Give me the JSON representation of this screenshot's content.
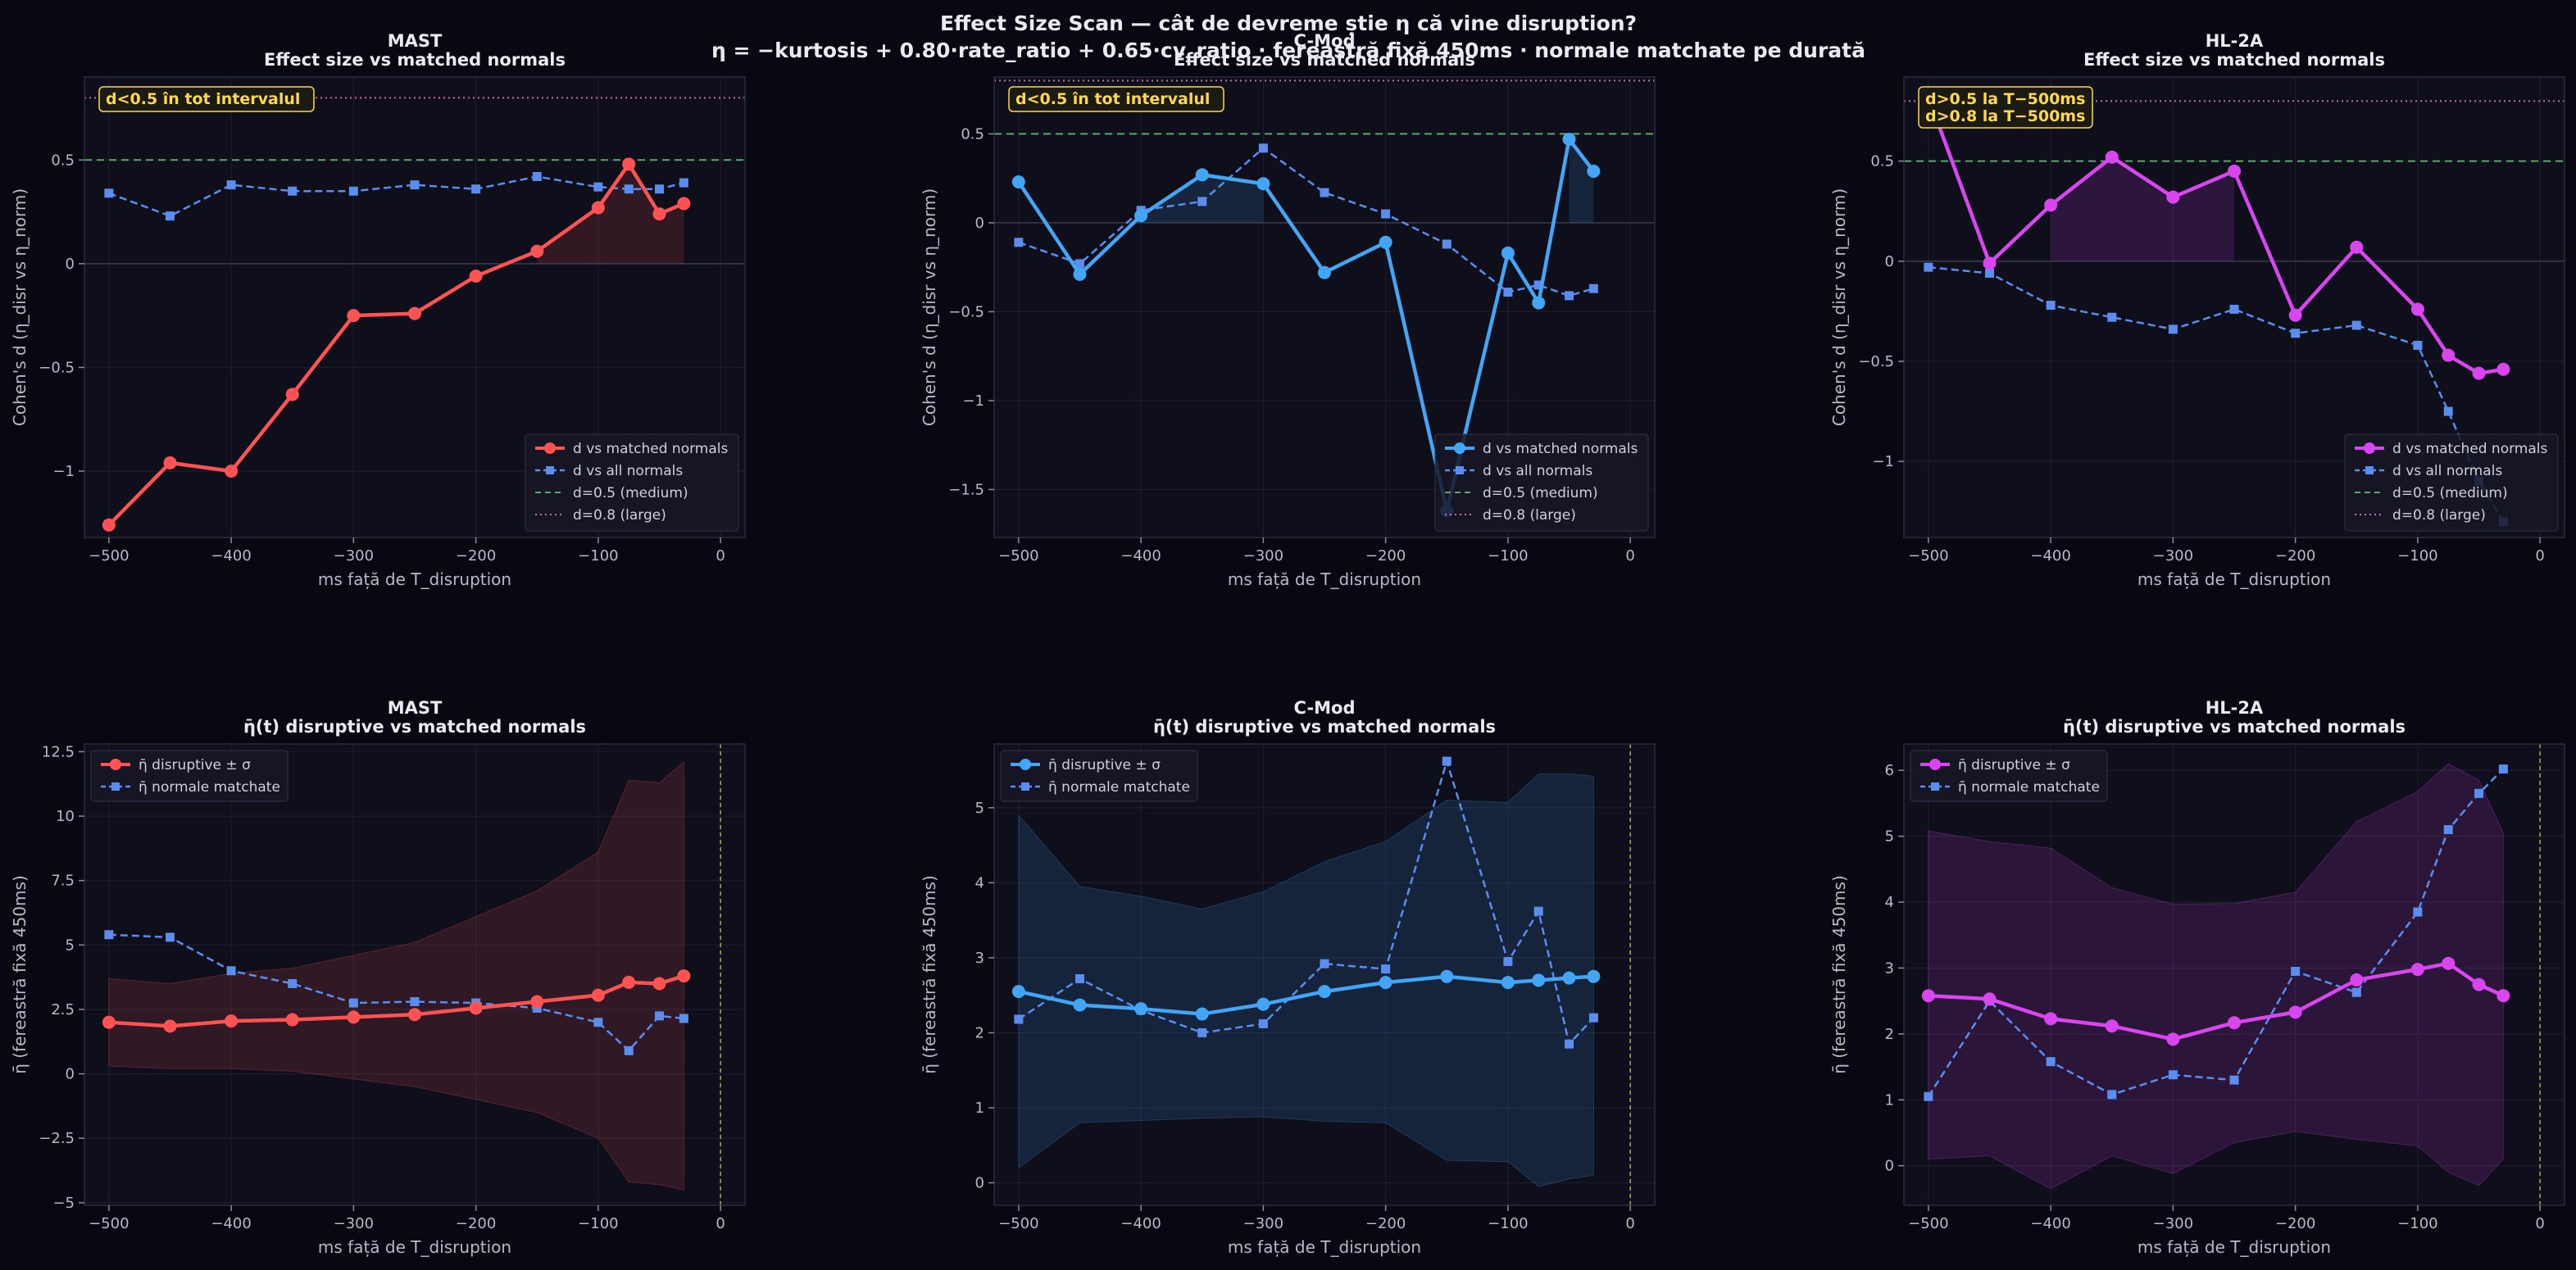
{
  "suptitle_line1": "Effect Size Scan — cât de devreme știe η că vine disruption?",
  "suptitle_line2": "η = −kurtosis + 0.80·rate_ratio + 0.65·cv_ratio · fereastră fixă 450ms · normale matchate pe durată",
  "colors": {
    "MAST": "#ff5252",
    "C-Mod": "#42a5f5",
    "HL-2A": "#d946ef",
    "secondary": "#5b8def",
    "ref_medium": "#5fa86a",
    "ref_large": "#c46fa8",
    "tdisr": "#b8a456"
  },
  "chart_data": [
    {
      "type": "line",
      "device": "MAST",
      "subtitle": "Effect size vs matched normals",
      "xlabel": "ms față de T_disruption",
      "ylabel": "Cohen's d (η_disr vs η_norm)",
      "xlim": [
        -520,
        20
      ],
      "ylim": [
        -1.32,
        0.9
      ],
      "xticks": [
        -500,
        -400,
        -300,
        -200,
        -100,
        0
      ],
      "yticks": [
        -1.0,
        -0.5,
        0.0,
        0.5
      ],
      "x": [
        -500,
        -450,
        -400,
        -350,
        -300,
        -250,
        -200,
        -150,
        -100,
        -75,
        -50,
        -30
      ],
      "series": [
        {
          "name": "d vs matched normals",
          "values": [
            -1.26,
            -0.96,
            -1.0,
            -0.63,
            -0.25,
            -0.24,
            -0.06,
            0.06,
            0.27,
            0.48,
            0.24,
            0.29
          ]
        },
        {
          "name": "d vs all normals",
          "values": [
            0.34,
            0.23,
            0.38,
            0.35,
            0.35,
            0.38,
            0.36,
            0.42,
            0.37,
            0.36,
            0.36,
            0.39
          ]
        }
      ],
      "shade": [
        -150,
        -30
      ],
      "ref_lines": [
        {
          "name": "d=0.5 (medium)",
          "value": 0.5
        },
        {
          "name": "d=0.8 (large)",
          "value": 0.8
        }
      ],
      "annotations": [
        "d<0.5 în tot intervalul"
      ],
      "legend": "lower-right"
    },
    {
      "type": "line",
      "device": "C-Mod",
      "subtitle": "Effect size vs matched normals",
      "xlabel": "ms față de T_disruption",
      "ylabel": "Cohen's d (η_disr vs η_norm)",
      "xlim": [
        -520,
        20
      ],
      "ylim": [
        -1.77,
        0.82
      ],
      "xticks": [
        -500,
        -400,
        -300,
        -200,
        -100,
        0
      ],
      "yticks": [
        -1.5,
        -1.0,
        -0.5,
        0.0,
        0.5
      ],
      "x": [
        -500,
        -450,
        -400,
        -350,
        -300,
        -250,
        -200,
        -150,
        -100,
        -75,
        -50,
        -30
      ],
      "series": [
        {
          "name": "d vs matched normals",
          "values": [
            0.23,
            -0.29,
            0.04,
            0.27,
            0.22,
            -0.28,
            -0.11,
            -1.62,
            -0.17,
            -0.45,
            0.47,
            0.29
          ]
        },
        {
          "name": "d vs all normals",
          "values": [
            -0.11,
            -0.23,
            0.07,
            0.12,
            0.42,
            0.17,
            0.05,
            -0.12,
            -0.39,
            -0.35,
            -0.41,
            -0.37
          ]
        }
      ],
      "shade_ranges": [
        [
          -400,
          -300
        ],
        [
          -50,
          -30
        ]
      ],
      "ref_lines": [
        {
          "name": "d=0.5 (medium)",
          "value": 0.5
        },
        {
          "name": "d=0.8 (large)",
          "value": 0.8
        }
      ],
      "annotations": [
        "d<0.5 în tot intervalul"
      ],
      "legend": "lower-right"
    },
    {
      "type": "line",
      "device": "HL-2A",
      "subtitle": "Effect size vs matched normals",
      "xlabel": "ms față de T_disruption",
      "ylabel": "Cohen's d (η_disr vs η_norm)",
      "xlim": [
        -520,
        20
      ],
      "ylim": [
        -1.38,
        0.92
      ],
      "xticks": [
        -500,
        -400,
        -300,
        -200,
        -100,
        0
      ],
      "yticks": [
        -1.0,
        -0.5,
        0.0,
        0.5
      ],
      "x": [
        -500,
        -450,
        -400,
        -350,
        -300,
        -250,
        -200,
        -150,
        -100,
        -75,
        -50,
        -30
      ],
      "series": [
        {
          "name": "d vs matched normals",
          "values": [
            0.82,
            -0.01,
            0.28,
            0.52,
            0.32,
            0.45,
            -0.27,
            0.07,
            -0.24,
            -0.47,
            -0.56,
            -0.54
          ]
        },
        {
          "name": "d vs all normals",
          "values": [
            -0.03,
            -0.06,
            -0.22,
            -0.28,
            -0.34,
            -0.24,
            -0.36,
            -0.32,
            -0.42,
            -0.75,
            -1.1,
            -1.3
          ]
        }
      ],
      "shade_ranges": [
        [
          -400,
          -250
        ]
      ],
      "ref_lines": [
        {
          "name": "d=0.5 (medium)",
          "value": 0.5
        },
        {
          "name": "d=0.8 (large)",
          "value": 0.8
        }
      ],
      "annotations": [
        "d>0.5 la T−500ms",
        "d>0.8 la T−500ms"
      ],
      "legend": "lower-right"
    },
    {
      "type": "line",
      "device": "MAST",
      "subtitle": "η̄(t) disruptive vs matched normals",
      "xlabel": "ms față de T_disruption",
      "ylabel": "η̄ (fereastră fixă 450ms)",
      "xlim": [
        -520,
        20
      ],
      "ylim": [
        -5.1,
        12.8
      ],
      "xticks": [
        -500,
        -400,
        -300,
        -200,
        -100,
        0
      ],
      "yticks": [
        -5.0,
        -2.5,
        0.0,
        2.5,
        5.0,
        7.5,
        10.0,
        12.5
      ],
      "x": [
        -500,
        -450,
        -400,
        -350,
        -300,
        -250,
        -200,
        -150,
        -100,
        -75,
        -50,
        -30
      ],
      "series": [
        {
          "name": "η̄ disruptive ± σ",
          "values": [
            2.0,
            1.85,
            2.05,
            2.1,
            2.2,
            2.3,
            2.55,
            2.8,
            3.05,
            3.55,
            3.5,
            3.8
          ],
          "band_low": [
            0.3,
            0.2,
            0.2,
            0.1,
            -0.2,
            -0.5,
            -1.0,
            -1.5,
            -2.5,
            -4.2,
            -4.3,
            -4.5
          ],
          "band_high": [
            3.7,
            3.5,
            3.9,
            4.1,
            4.6,
            5.1,
            6.1,
            7.1,
            8.6,
            11.4,
            11.3,
            12.1
          ]
        },
        {
          "name": "η̄ normale matchate",
          "values": [
            5.4,
            5.3,
            4.0,
            3.5,
            2.75,
            2.8,
            2.75,
            2.55,
            2.0,
            0.9,
            2.25,
            2.15
          ]
        }
      ],
      "legend": "upper-left"
    },
    {
      "type": "line",
      "device": "C-Mod",
      "subtitle": "η̄(t) disruptive vs matched normals",
      "xlabel": "ms față de T_disruption",
      "ylabel": "η̄ (fereastră fixă 450ms)",
      "xlim": [
        -520,
        20
      ],
      "ylim": [
        -0.3,
        5.85
      ],
      "xticks": [
        -500,
        -400,
        -300,
        -200,
        -100,
        0
      ],
      "yticks": [
        0,
        1,
        2,
        3,
        4,
        5
      ],
      "x": [
        -500,
        -450,
        -400,
        -350,
        -300,
        -250,
        -200,
        -150,
        -100,
        -75,
        -50,
        -30
      ],
      "series": [
        {
          "name": "η̄ disruptive ± σ",
          "values": [
            2.55,
            2.37,
            2.32,
            2.25,
            2.38,
            2.55,
            2.67,
            2.75,
            2.67,
            2.7,
            2.73,
            2.75
          ],
          "band_low": [
            0.2,
            0.8,
            0.83,
            0.86,
            0.88,
            0.82,
            0.8,
            0.3,
            0.28,
            -0.05,
            0.05,
            0.1
          ],
          "band_high": [
            4.9,
            3.95,
            3.82,
            3.65,
            3.88,
            4.28,
            4.55,
            5.1,
            5.07,
            5.45,
            5.45,
            5.42
          ]
        },
        {
          "name": "η̄ normale matchate",
          "values": [
            2.18,
            2.72,
            2.3,
            2.0,
            2.12,
            2.92,
            2.85,
            5.62,
            2.95,
            3.62,
            1.85,
            2.2
          ]
        }
      ],
      "legend": "upper-left"
    },
    {
      "type": "line",
      "device": "HL-2A",
      "subtitle": "η̄(t) disruptive vs matched normals",
      "xlabel": "ms față de T_disruption",
      "ylabel": "η̄ (fereastră fixă 450ms)",
      "xlim": [
        -520,
        20
      ],
      "ylim": [
        -0.6,
        6.4
      ],
      "xticks": [
        -500,
        -400,
        -300,
        -200,
        -100,
        0
      ],
      "yticks": [
        0,
        1,
        2,
        3,
        4,
        5,
        6
      ],
      "x": [
        -500,
        -450,
        -400,
        -350,
        -300,
        -250,
        -200,
        -150,
        -100,
        -75,
        -50,
        -30
      ],
      "series": [
        {
          "name": "η̄ disruptive ± σ",
          "values": [
            2.58,
            2.53,
            2.23,
            2.12,
            1.92,
            2.17,
            2.33,
            2.82,
            2.98,
            3.07,
            2.75,
            2.58
          ],
          "band_low": [
            0.1,
            0.15,
            -0.35,
            0.15,
            -0.12,
            0.35,
            0.52,
            0.4,
            0.3,
            -0.1,
            -0.3,
            0.1
          ],
          "band_high": [
            5.08,
            4.92,
            4.82,
            4.22,
            3.97,
            3.98,
            4.15,
            5.22,
            5.68,
            6.1,
            5.85,
            5.05
          ]
        },
        {
          "name": "η̄ normale matchate",
          "values": [
            1.05,
            2.5,
            1.58,
            1.08,
            1.38,
            1.3,
            2.95,
            2.63,
            3.85,
            5.1,
            5.65,
            6.02
          ]
        }
      ],
      "legend": "upper-left"
    }
  ]
}
